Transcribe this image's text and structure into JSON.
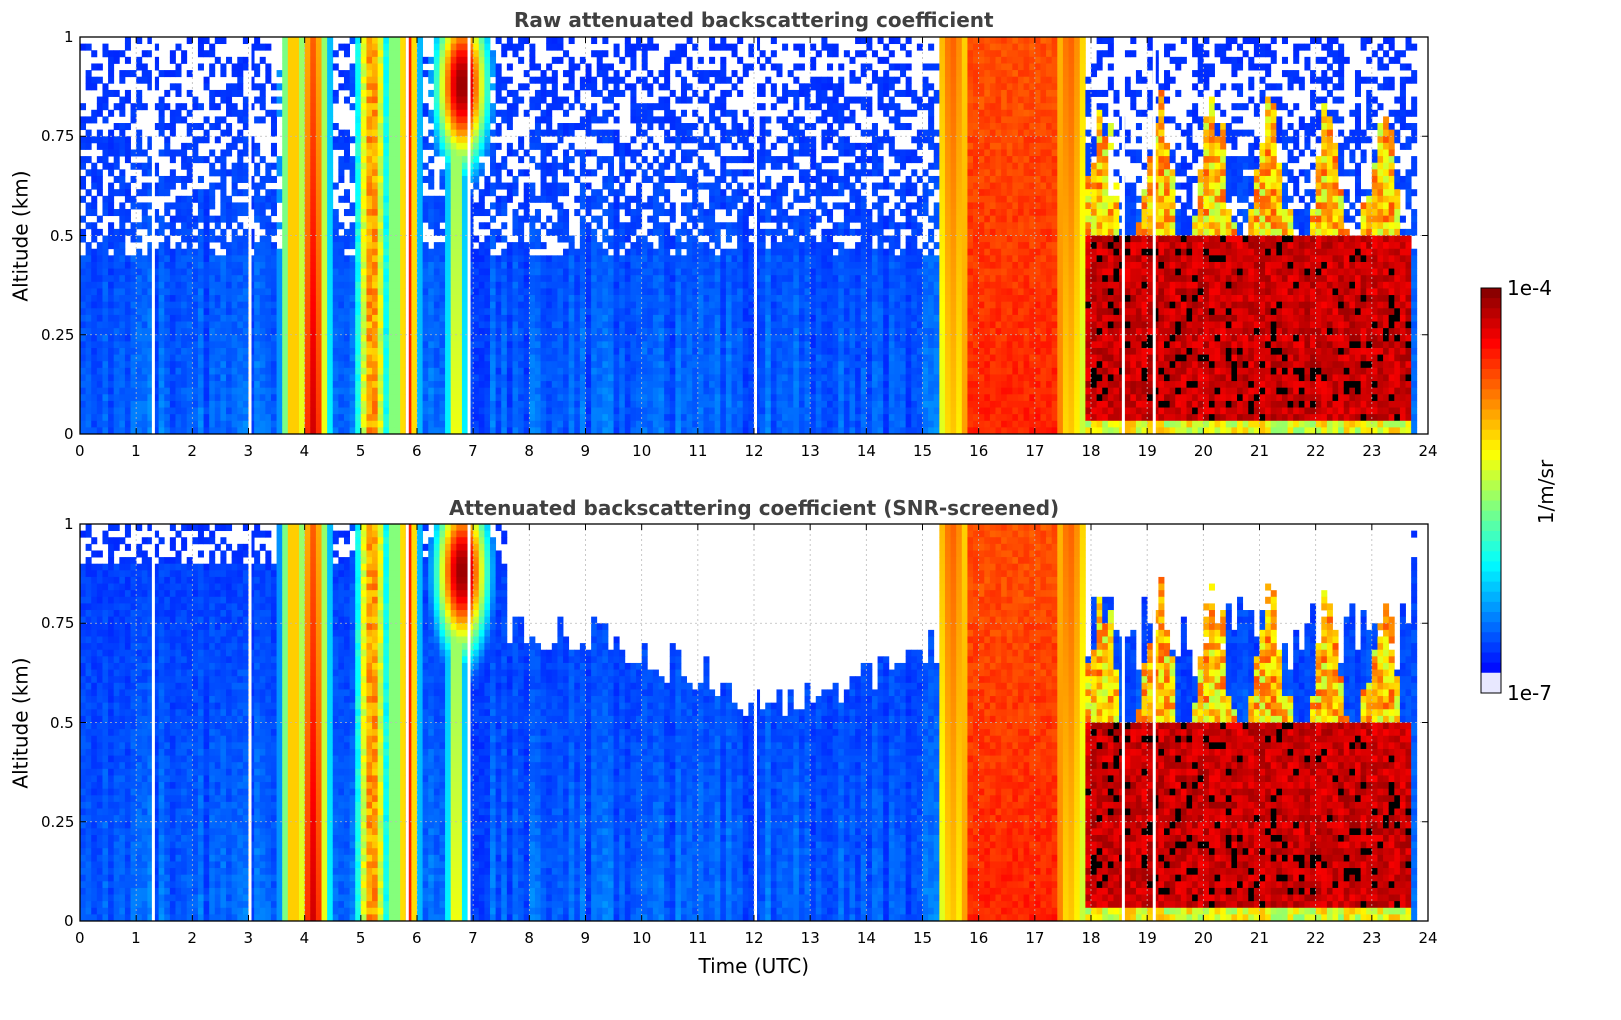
{
  "chart_data": [
    {
      "type": "heatmap",
      "title": "Raw attenuated backscattering coefficient",
      "xlabel": "",
      "ylabel": "Altitude (km)",
      "xlim": [
        0,
        24
      ],
      "ylim": [
        0,
        1
      ],
      "xticks": [
        "0",
        "1",
        "2",
        "3",
        "4",
        "5",
        "6",
        "7",
        "8",
        "9",
        "10",
        "11",
        "12",
        "13",
        "14",
        "15",
        "16",
        "17",
        "18",
        "19",
        "20",
        "21",
        "22",
        "23",
        "24"
      ],
      "yticks": [
        "0",
        "0.25",
        "0.5",
        "0.75",
        "1"
      ],
      "grid": true,
      "screened": false
    },
    {
      "type": "heatmap",
      "title": "Attenuated backscattering coefficient (SNR-screened)",
      "xlabel": "Time (UTC)",
      "ylabel": "Altitude (km)",
      "xlim": [
        0,
        24
      ],
      "ylim": [
        0,
        1
      ],
      "xticks": [
        "0",
        "1",
        "2",
        "3",
        "4",
        "5",
        "6",
        "7",
        "8",
        "9",
        "10",
        "11",
        "12",
        "13",
        "14",
        "15",
        "16",
        "17",
        "18",
        "19",
        "20",
        "21",
        "22",
        "23",
        "24"
      ],
      "yticks": [
        "0",
        "0.25",
        "0.5",
        "0.75",
        "1"
      ],
      "grid": true,
      "screened": true
    }
  ],
  "colorbar": {
    "label": "1/m/sr",
    "min_label": "1e-7",
    "max_label": "1e-4",
    "scale": "log",
    "colormap": "jet"
  }
}
